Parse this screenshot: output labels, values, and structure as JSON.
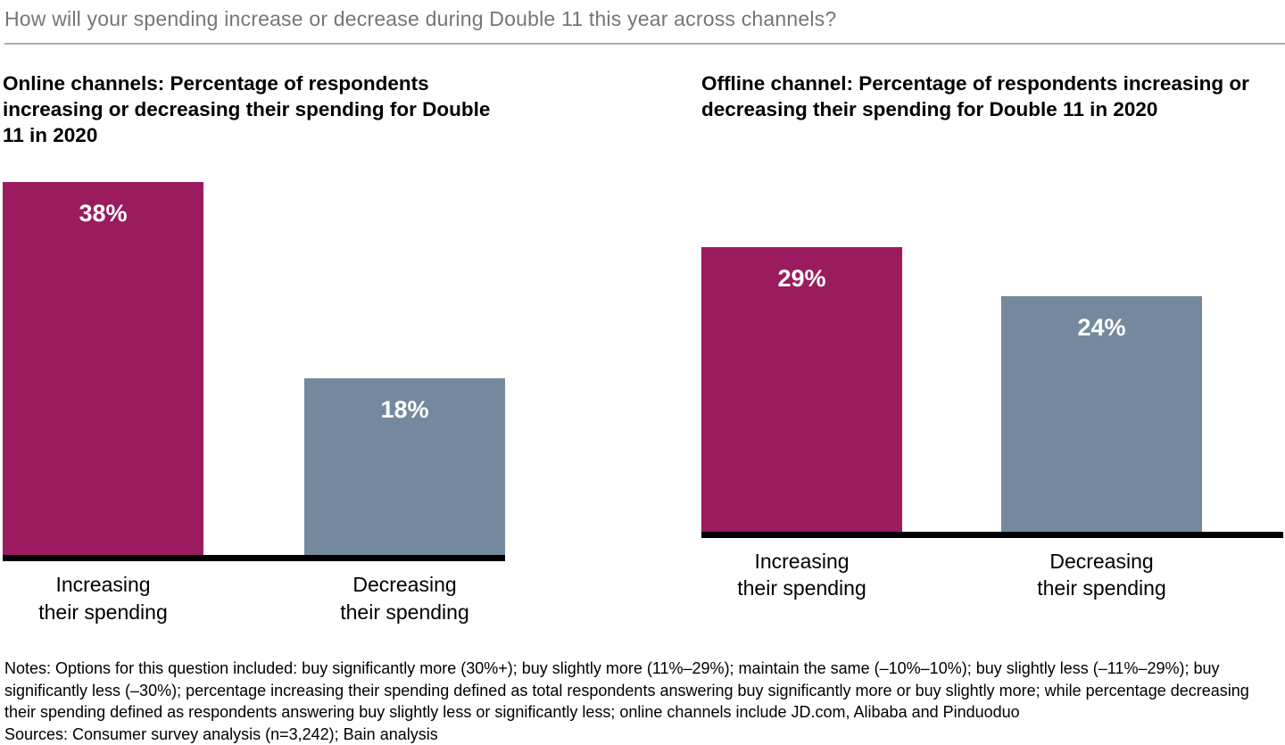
{
  "page_title": "How will your spending increase or decrease during Double 11 this year across channels?",
  "colors": {
    "increase_bar": "#9a1b5e",
    "decrease_bar": "#74899d",
    "baseline": "#000000",
    "title_gray": "#767676"
  },
  "chart_data": [
    {
      "type": "bar",
      "title": "Online channels: Percentage of respondents increasing or decreasing their spending for Double 11 in 2020",
      "categories": [
        "Increasing\ntheir spending",
        "Decreasing\ntheir spending"
      ],
      "values": [
        38,
        18
      ],
      "unit": "%",
      "ylim": [
        0,
        40
      ],
      "grid": false,
      "legend": "none",
      "bar_colors": [
        "#9a1b5e",
        "#74899d"
      ]
    },
    {
      "type": "bar",
      "title": "Offline channel: Percentage of respondents increasing or decreasing their spending for Double 11 in 2020",
      "categories": [
        "Increasing\ntheir spending",
        "Decreasing\ntheir spending"
      ],
      "values": [
        29,
        24
      ],
      "unit": "%",
      "ylim": [
        0,
        40
      ],
      "grid": false,
      "legend": "none",
      "bar_colors": [
        "#9a1b5e",
        "#74899d"
      ]
    }
  ],
  "footer": {
    "notes": "Notes: Options for this question included: buy significantly more (30%+); buy slightly more (11%–29%); maintain the same (–10%–10%); buy slightly less (–11%–29%); buy significantly less (–30%); percentage increasing their spending defined as total respondents answering buy significantly more or buy slightly more; while percentage decreasing their spending defined as respondents answering buy slightly less or significantly less; online channels include JD.com, Alibaba and Pinduoduo",
    "sources": "Sources: Consumer survey analysis (n=3,242); Bain analysis"
  }
}
